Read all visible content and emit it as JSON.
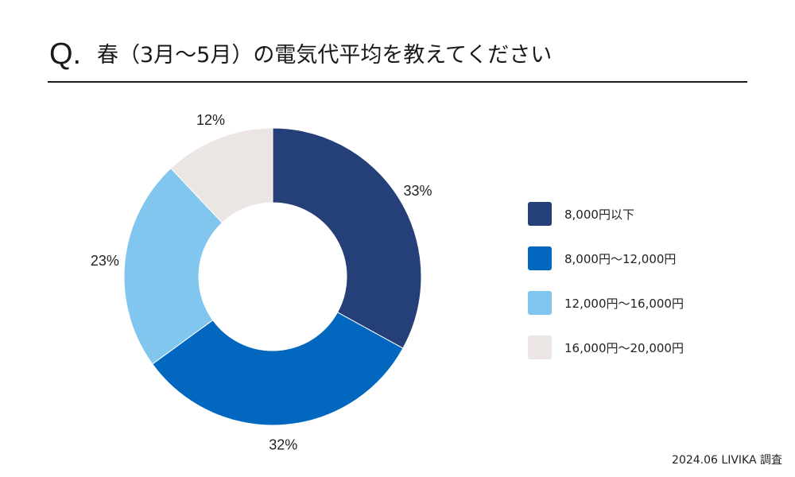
{
  "header": {
    "q_mark": "Q.",
    "title": "春（3月〜5月）の電気代平均を教えてください"
  },
  "chart_data": {
    "type": "pie",
    "donut": true,
    "categories": [
      "8,000円以下",
      "8,000円〜12,000円",
      "12,000円〜16,000円",
      "16,000円〜20,000円"
    ],
    "values": [
      33,
      32,
      23,
      12
    ],
    "unit": "%",
    "data_labels": [
      "33%",
      "32%",
      "23%",
      "12%"
    ],
    "colors": [
      "#253f78",
      "#0267be",
      "#80c6ee",
      "#ebe6e3"
    ],
    "legend_position": "right",
    "title": "",
    "start_angle": "12 o'clock",
    "direction": "clockwise"
  },
  "source": "2024.06 LIVIKA 調査"
}
